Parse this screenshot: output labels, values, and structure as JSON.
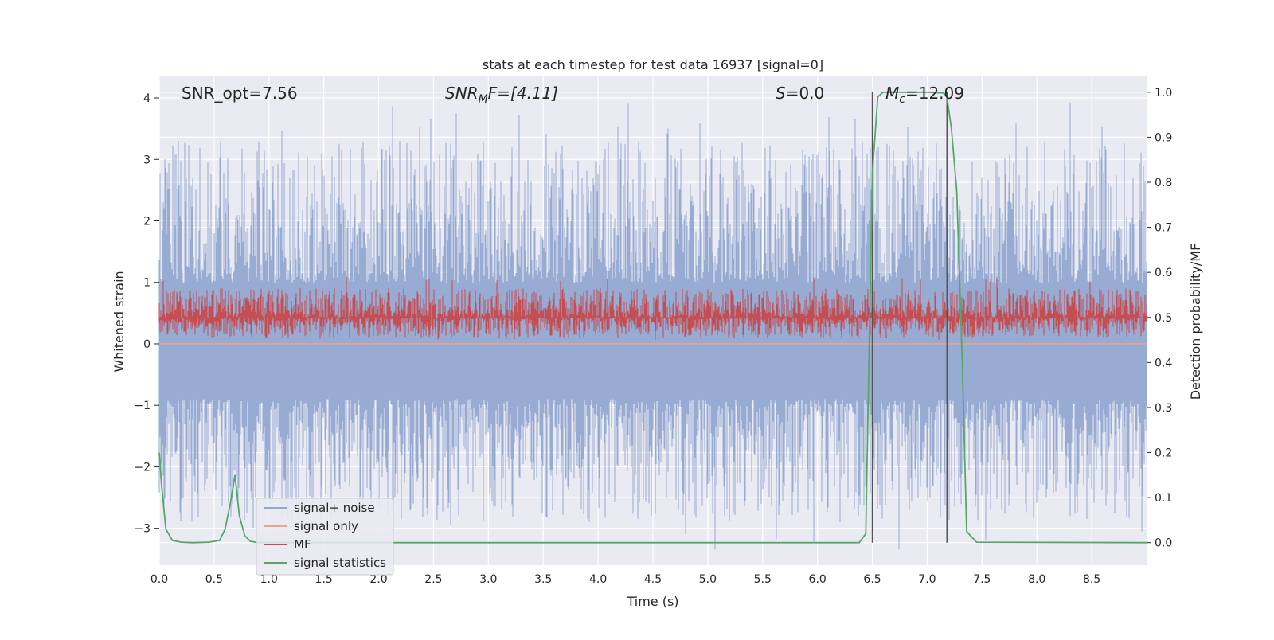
{
  "chart_data": {
    "type": "line",
    "title": "stats at each timestep for test data 16937 [signal=0]",
    "xlabel": "Time (s)",
    "ylabel_left": "Whitened strain",
    "ylabel_right": "Detection probability/MF",
    "xlim": [
      0.0,
      9.0
    ],
    "ylim_left": [
      -3.6,
      4.35
    ],
    "ylim_right": [
      -0.05,
      1.035
    ],
    "x_ticks": [
      "0.0",
      "0.5",
      "1.0",
      "1.5",
      "2.0",
      "2.5",
      "3.0",
      "3.5",
      "4.0",
      "4.5",
      "5.0",
      "5.5",
      "6.0",
      "6.5",
      "7.0",
      "7.5",
      "8.0",
      "8.5"
    ],
    "y_ticks_left": [
      "−3",
      "−2",
      "−1",
      "0",
      "1",
      "2",
      "3",
      "4"
    ],
    "y_ticks_right": [
      "0.0",
      "0.1",
      "0.2",
      "0.3",
      "0.4",
      "0.5",
      "0.6",
      "0.7",
      "0.8",
      "0.9",
      "1.0"
    ],
    "grid": true,
    "annotations": {
      "snr_opt": "SNR_opt=7.56",
      "snr_mf_symbol": "SNR",
      "snr_mf_sub": "M",
      "snr_mf_rest": "F=[4.11]",
      "s_symbol": "S",
      "s_rest": "=0.0",
      "mc_symbol": "M",
      "mc_sub": "c",
      "mc_rest": "=12.09"
    },
    "vertical_lines_x": [
      6.5,
      7.18
    ],
    "legend_placement": "lower-left",
    "series": [
      {
        "name": "signal+ noise",
        "color": "#92a8d1",
        "axis": "left",
        "envelope": {
          "min": -3.35,
          "max": 4.0
        }
      },
      {
        "name": "signal only",
        "color": "#e8a58c",
        "axis": "left",
        "values_constant": 0.0
      },
      {
        "name": "MF",
        "color": "#c44e52",
        "axis": "right",
        "envelope": {
          "min": 0.45,
          "max": 0.59
        }
      },
      {
        "name": "signal statistics",
        "color": "#55a868",
        "axis": "right",
        "x": [
          0.0,
          0.02,
          0.06,
          0.12,
          0.2,
          0.3,
          0.45,
          0.55,
          0.6,
          0.65,
          0.69,
          0.73,
          0.78,
          0.83,
          0.9,
          1.0,
          6.38,
          6.44,
          6.5,
          6.55,
          6.6,
          6.7,
          7.0,
          7.15,
          7.18,
          7.22,
          7.27,
          7.32,
          7.36,
          7.45,
          9.0
        ],
        "y": [
          0.2,
          0.13,
          0.03,
          0.005,
          0.001,
          0.0,
          0.001,
          0.005,
          0.03,
          0.09,
          0.15,
          0.06,
          0.015,
          0.003,
          0.0,
          0.0,
          0.0,
          0.02,
          0.82,
          0.99,
          1.0,
          1.0,
          1.0,
          0.998,
          0.99,
          0.92,
          0.78,
          0.4,
          0.025,
          0.001,
          0.0
        ]
      }
    ]
  }
}
